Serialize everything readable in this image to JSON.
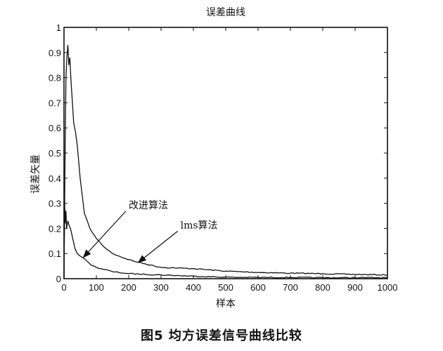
{
  "caption": "图5   均方误差信号曲线比较",
  "chart_data": {
    "type": "line",
    "title": "误差曲线",
    "xlabel": "样本",
    "ylabel": "误差矢量",
    "xlim": [
      0,
      1000
    ],
    "ylim": [
      0,
      1
    ],
    "xticks": [
      0,
      100,
      200,
      300,
      400,
      500,
      600,
      700,
      800,
      900,
      1000
    ],
    "yticks": [
      0,
      0.1,
      0.2,
      0.3,
      0.4,
      0.5,
      0.6,
      0.7,
      0.8,
      0.9,
      1
    ],
    "ytick_labels": [
      "0",
      "0.1",
      "0.2",
      "0.3",
      "0.4",
      "0.5",
      "0.6",
      "0.7",
      "0.8",
      "0.9",
      "1"
    ],
    "grid": false,
    "series": [
      {
        "name": "lms算法",
        "x": [
          0,
          3,
          6,
          9,
          12,
          15,
          18,
          22,
          26,
          30,
          36,
          41,
          50,
          63,
          80,
          100,
          125,
          150,
          190,
          230,
          300,
          400,
          500,
          600,
          700,
          800,
          900,
          1000
        ],
        "y": [
          0,
          0.45,
          0.8,
          0.88,
          0.93,
          0.85,
          0.88,
          0.78,
          0.7,
          0.62,
          0.58,
          0.53,
          0.4,
          0.26,
          0.2,
          0.16,
          0.125,
          0.1,
          0.08,
          0.065,
          0.045,
          0.04,
          0.03,
          0.025,
          0.022,
          0.02,
          0.017,
          0.015
        ]
      },
      {
        "name": "改进算法",
        "x": [
          0,
          2,
          4,
          6,
          8,
          12,
          16,
          20,
          27,
          34,
          41,
          50,
          63,
          75,
          85,
          100,
          150,
          200,
          300,
          400,
          500,
          600,
          700,
          800,
          900,
          1000
        ],
        "y": [
          0,
          0.3,
          0.22,
          0.27,
          0.2,
          0.23,
          0.21,
          0.2,
          0.16,
          0.12,
          0.1,
          0.09,
          0.08,
          0.065,
          0.053,
          0.045,
          0.028,
          0.02,
          0.015,
          0.01,
          0.006,
          0.005,
          0.005,
          0.004,
          0.004,
          0.004
        ]
      }
    ],
    "annotations": [
      {
        "text": "改进算法",
        "text_at": [
          200,
          0.28
        ],
        "arrow_to": [
          60,
          0.085
        ]
      },
      {
        "text": "lms算法",
        "text_at": [
          360,
          0.2
        ],
        "arrow_to": [
          230,
          0.065
        ]
      }
    ]
  }
}
